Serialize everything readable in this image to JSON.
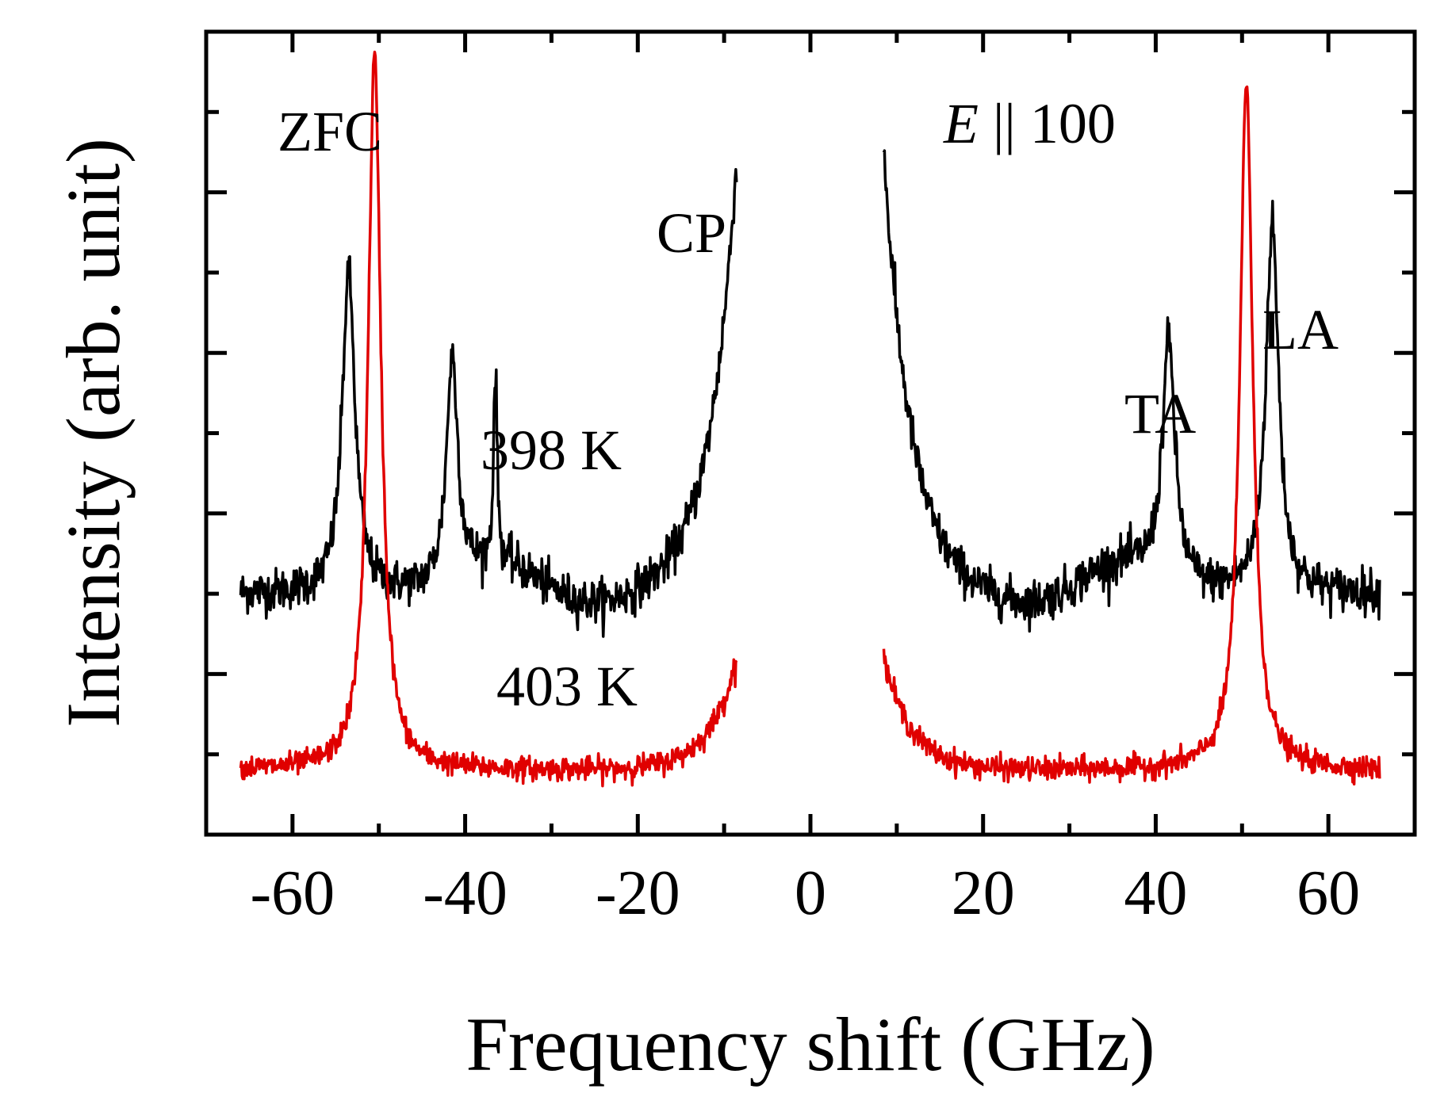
{
  "chart_data": {
    "type": "line",
    "title": "",
    "xlabel": "Frequency shift (GHz)",
    "ylabel": "Intensity (arb. unit)",
    "xlim": [
      -70,
      70
    ],
    "ylim": [
      0,
      10
    ],
    "grid": false,
    "xticks": [
      -60,
      -40,
      -20,
      0,
      20,
      40,
      60
    ],
    "xtick_labels": [
      "-60",
      "-40",
      "-20",
      "0",
      "20",
      "40",
      "60"
    ],
    "yticks": [
      1,
      2,
      3,
      4,
      5,
      6,
      7,
      8,
      9,
      10
    ],
    "annotations": {
      "zfc": "ZFC",
      "field_italic": "E",
      "field_rest": " || 100",
      "cp": "CP",
      "temp_398": "398 K",
      "temp_403": "403 K",
      "ta": "TA",
      "la": "LA"
    },
    "series": [
      {
        "name": "398 K",
        "color": "#000000",
        "x_ranges": [
          [
            -66,
            -8.5
          ],
          [
            8.5,
            66
          ]
        ],
        "baseline": 3.0,
        "noise": 0.22,
        "peaks": [
          {
            "x": -53.5,
            "height": 7.0,
            "width": 0.9
          },
          {
            "x": -41.5,
            "height": 5.8,
            "width": 0.8
          },
          {
            "x": -36.5,
            "height": 5.4,
            "width": 0.25
          },
          {
            "x": 41.5,
            "height": 6.0,
            "width": 0.9
          },
          {
            "x": 53.5,
            "height": 7.6,
            "width": 0.9
          }
        ],
        "central_peak_at_cutoff": 8.5
      },
      {
        "name": "403 K",
        "color": "#e00000",
        "x_ranges": [
          [
            -66,
            -8.5
          ],
          [
            8.5,
            66
          ]
        ],
        "baseline": 0.8,
        "noise": 0.12,
        "peaks": [
          {
            "x": -50.5,
            "height": 9.7,
            "width": 0.9
          },
          {
            "x": 50.5,
            "height": 9.4,
            "width": 0.9
          }
        ],
        "central_peak_at_cutoff": 2.2
      }
    ]
  }
}
